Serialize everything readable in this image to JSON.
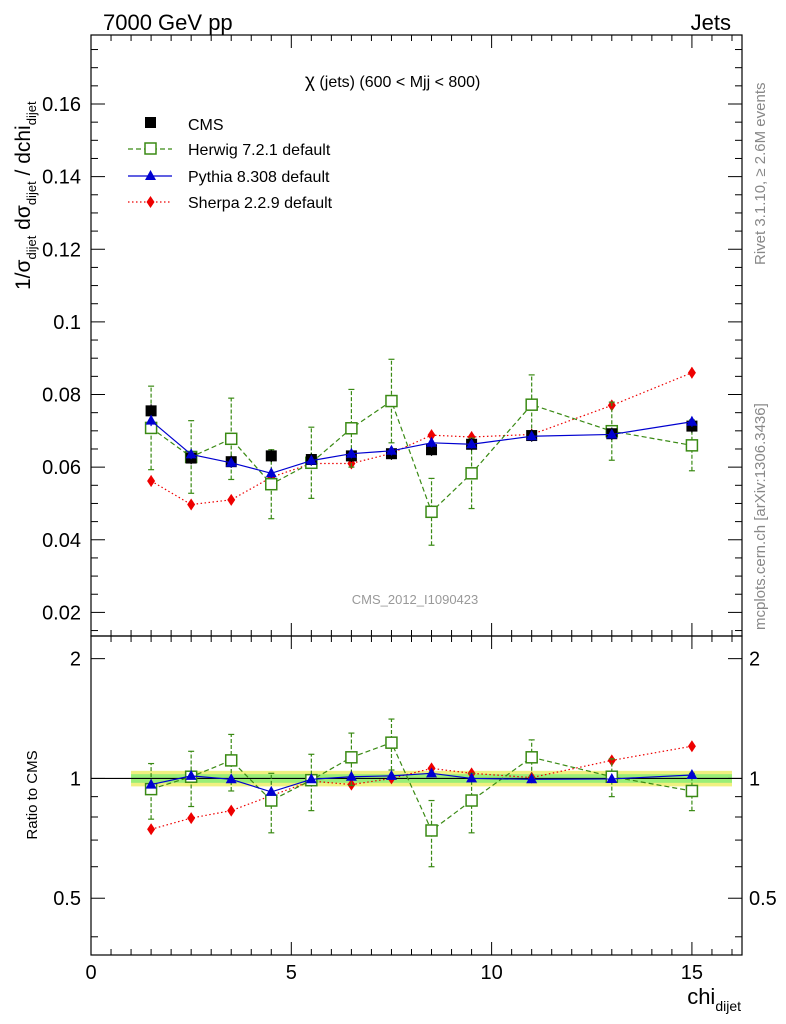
{
  "header": {
    "left": "7000 GeV pp",
    "right": "Jets"
  },
  "side_labels": {
    "rivet_pre": "Rivet 3.1.10, ",
    "rivet_ge": "≥",
    "rivet_post": " 2.6M events",
    "mcplots": "mcplots.cern.ch [arXiv:1306.3436]"
  },
  "watermark": "CMS_2012_I1090423",
  "ylabel_main": {
    "prefix": "1/σ",
    "sub1": "dijet",
    "mid": " dσ",
    "sub2": "dijet",
    "suffix": " / dchi",
    "sub3": "dijet"
  },
  "ylabel_ratio": "Ratio to CMS",
  "xlabel": {
    "main": "chi",
    "sub": "dijet"
  },
  "plot_title": {
    "chi": "χ",
    "rest": " (jets) (600 < Mjj <  800)"
  },
  "colors": {
    "cms": "#000000",
    "herwig": "#3a8a14",
    "pythia": "#0000d0",
    "sherpa": "#ee0000",
    "band_inner": "#99ee77",
    "band_outer": "#f0f080"
  },
  "chart_data": {
    "type": "scatter",
    "xlim": [
      0,
      16.25
    ],
    "ylim_main": [
      0.0135,
      0.179
    ],
    "ylim_ratio": [
      0.36,
      2.28
    ],
    "ratio_log_scale": true,
    "x_ticks": [
      "0",
      "5",
      "10",
      "15"
    ],
    "y_ticks_main": [
      "0.02",
      "0.04",
      "0.06",
      "0.08",
      "0.1",
      "0.12",
      "0.14",
      "0.16"
    ],
    "y_ticks_ratio": [
      "0.5",
      "1",
      "2"
    ],
    "legend_position": "top-left",
    "x": [
      1.5,
      2.5,
      3.5,
      4.5,
      5.5,
      6.5,
      7.5,
      8.5,
      9.5,
      11,
      13,
      15
    ],
    "x_lo": [
      1,
      2,
      3,
      4,
      5,
      6,
      7,
      8,
      9,
      10,
      12,
      14
    ],
    "x_hi": [
      2,
      3,
      4,
      5,
      6,
      7,
      8,
      9,
      10,
      12,
      14,
      16
    ],
    "series": [
      {
        "name": "CMS",
        "key": "cms",
        "marker": "square-filled",
        "line": "none",
        "values": [
          0.0755,
          0.0625,
          0.0615,
          0.0631,
          0.0621,
          0.0631,
          0.0637,
          0.0648,
          0.0663,
          0.0687,
          0.0692,
          0.0713
        ],
        "err": [
          0.0018,
          0.0017,
          0.0017,
          0.0017,
          0.0017,
          0.0017,
          0.0017,
          0.0017,
          0.0017,
          0.0017,
          0.0017,
          0.0018
        ]
      },
      {
        "name": "Herwig 7.2.1 default",
        "key": "herwig",
        "marker": "square-open",
        "line": "dashed",
        "values": [
          0.0708,
          0.0628,
          0.0678,
          0.0553,
          0.0612,
          0.0707,
          0.0782,
          0.0477,
          0.0583,
          0.0772,
          0.0699,
          0.066
        ],
        "err": [
          0.0115,
          0.01,
          0.0112,
          0.0095,
          0.0098,
          0.0107,
          0.0115,
          0.0092,
          0.0097,
          0.0082,
          0.008,
          0.007
        ]
      },
      {
        "name": "Pythia 8.308 default",
        "key": "pythia",
        "marker": "triangle",
        "line": "solid",
        "values": [
          0.0728,
          0.0635,
          0.0612,
          0.0583,
          0.0618,
          0.0637,
          0.0645,
          0.0667,
          0.0663,
          0.0685,
          0.069,
          0.0725
        ],
        "err": [
          0.0015,
          0.0013,
          0.0013,
          0.0013,
          0.0013,
          0.0013,
          0.0013,
          0.0013,
          0.0012,
          0.0012,
          0.0012,
          0.0014
        ]
      },
      {
        "name": "Sherpa 2.2.9 default",
        "key": "sherpa",
        "marker": "diamond",
        "line": "dotted",
        "values": [
          0.0562,
          0.0497,
          0.051,
          0.0572,
          0.061,
          0.061,
          0.0638,
          0.0688,
          0.0683,
          0.069,
          0.077,
          0.086
        ],
        "err": [
          0.0015,
          0.0013,
          0.0013,
          0.0013,
          0.0014,
          0.0014,
          0.0014,
          0.0015,
          0.0015,
          0.0013,
          0.0013,
          0.0015
        ]
      }
    ],
    "ratio_series": [
      {
        "key": "herwig",
        "values": [
          0.94,
          1.01,
          1.11,
          0.88,
          0.99,
          1.13,
          1.23,
          0.74,
          0.88,
          1.13,
          1.01,
          0.93
        ],
        "err": [
          0.15,
          0.16,
          0.18,
          0.15,
          0.16,
          0.17,
          0.18,
          0.14,
          0.15,
          0.12,
          0.11,
          0.1
        ]
      },
      {
        "key": "pythia",
        "values": [
          0.965,
          1.015,
          0.995,
          0.925,
          0.995,
          1.01,
          1.015,
          1.03,
          1.0,
          0.995,
          0.997,
          1.02
        ],
        "err": [
          0.02,
          0.02,
          0.02,
          0.02,
          0.02,
          0.02,
          0.02,
          0.02,
          0.02,
          0.02,
          0.02,
          0.02
        ]
      },
      {
        "key": "sherpa",
        "values": [
          0.745,
          0.795,
          0.83,
          0.905,
          0.985,
          0.965,
          1.0,
          1.06,
          1.03,
          1.005,
          1.11,
          1.205
        ],
        "err": [
          0.02,
          0.02,
          0.02,
          0.02,
          0.02,
          0.02,
          0.02,
          0.02,
          0.02,
          0.02,
          0.02,
          0.02
        ]
      }
    ],
    "ratio_band_inner": [
      0.975,
      1.025
    ],
    "ratio_band_outer": [
      0.955,
      1.045
    ]
  }
}
